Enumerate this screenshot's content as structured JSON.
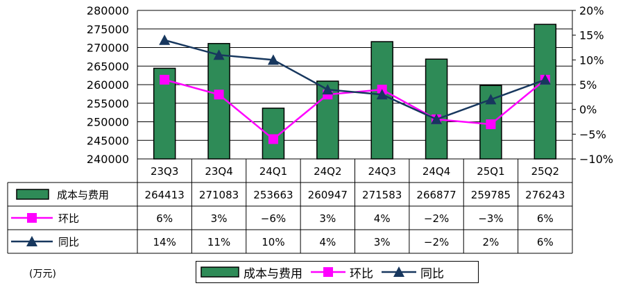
{
  "chart_data": {
    "type": "bar",
    "categories": [
      "23Q3",
      "23Q4",
      "24Q1",
      "24Q2",
      "24Q3",
      "24Q4",
      "25Q1",
      "25Q2"
    ],
    "series": [
      {
        "name": "成本与费用",
        "type": "bar",
        "axis": "left",
        "color": "#2e8b57",
        "values": [
          264413,
          271083,
          253663,
          260947,
          271583,
          266877,
          259785,
          276243
        ]
      },
      {
        "name": "环比",
        "type": "line",
        "axis": "right",
        "color": "#ff00ff",
        "marker": "square",
        "values": [
          6,
          3,
          -6,
          3,
          4,
          -2,
          -3,
          6
        ],
        "labels": [
          "6%",
          "3%",
          "−6%",
          "3%",
          "4%",
          "−2%",
          "−3%",
          "6%"
        ]
      },
      {
        "name": "同比",
        "type": "line",
        "axis": "right",
        "color": "#17375e",
        "marker": "triangle",
        "values": [
          14,
          11,
          10,
          4,
          3,
          -2,
          2,
          6
        ],
        "labels": [
          "14%",
          "11%",
          "10%",
          "4%",
          "3%",
          "−2%",
          "2%",
          "6%"
        ]
      }
    ],
    "y_left": {
      "min": 240000,
      "max": 280000,
      "step": 5000,
      "ticks": [
        "240000",
        "245000",
        "250000",
        "255000",
        "260000",
        "265000",
        "270000",
        "275000",
        "280000"
      ]
    },
    "y_right": {
      "min": -10,
      "max": 20,
      "step": 5,
      "ticks": [
        "−10%",
        "−5%",
        "0%",
        "5%",
        "10%",
        "15%",
        "20%"
      ]
    },
    "unit": "(万元)",
    "legend_position": "bottom"
  }
}
